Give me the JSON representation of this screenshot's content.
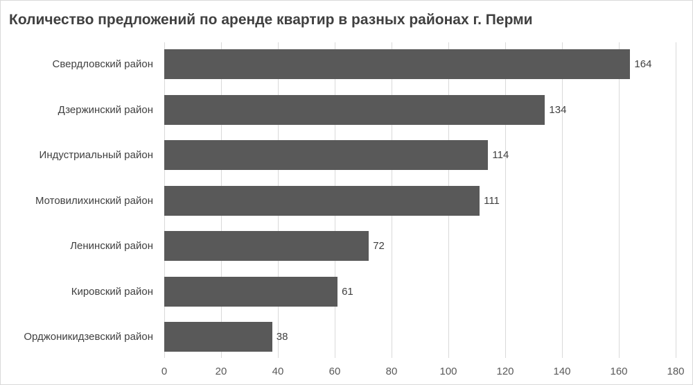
{
  "chart_data": {
    "type": "bar",
    "orientation": "horizontal",
    "title": "Количество предложений по аренде квартир в разных районах г. Перми",
    "categories": [
      "Свердловский район",
      "Дзержинский район",
      "Индустриальный район",
      "Мотовилихинский район",
      "Ленинский район",
      "Кировский район",
      "Орджоникидзевский район"
    ],
    "values": [
      164,
      134,
      114,
      111,
      72,
      61,
      38
    ],
    "xlabel": "",
    "ylabel": "",
    "xlim": [
      0,
      180
    ],
    "xticks": [
      "0",
      "20",
      "40",
      "60",
      "80",
      "100",
      "120",
      "140",
      "160",
      "180"
    ],
    "grid": true,
    "legend": "none",
    "bar_color": "#595959"
  }
}
